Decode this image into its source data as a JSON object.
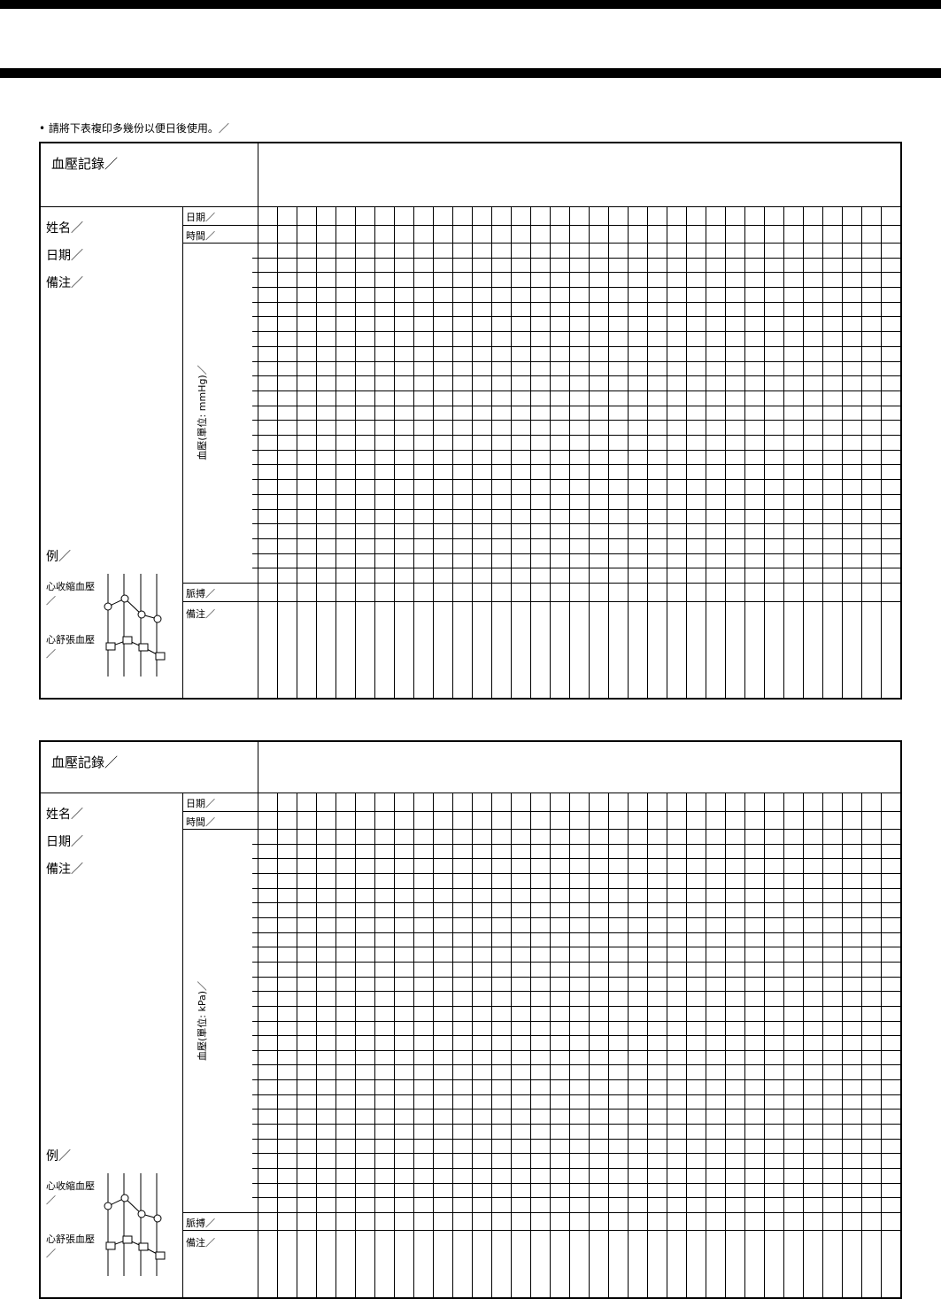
{
  "instruction": "請將下表複印多幾份以便日後使用。／",
  "forms": [
    {
      "title": "血壓記錄／",
      "name_label": "姓名／",
      "date_label": "日期／",
      "remarks_label": "備注／",
      "example_label": "例／",
      "systolic_label": "心收縮血壓",
      "systolic_slash": "／",
      "diastolic_label": "心舒張血壓",
      "diastolic_slash": "／",
      "row_date": "日期／",
      "row_time": "時間／",
      "row_bp": "血壓(單位: mmHg)／",
      "row_pulse": "脈搏／",
      "row_notes": "備注／"
    },
    {
      "title": "血壓記錄／",
      "name_label": "姓名／",
      "date_label": "日期／",
      "remarks_label": "備注／",
      "example_label": "例／",
      "systolic_label": "心收縮血壓",
      "systolic_slash": "／",
      "diastolic_label": "心舒張血壓",
      "diastolic_slash": "／",
      "row_date": "日期／",
      "row_time": "時間／",
      "row_bp": "血壓(單位: kPa)／",
      "row_pulse": "脈搏／",
      "row_notes": "備注／"
    }
  ]
}
